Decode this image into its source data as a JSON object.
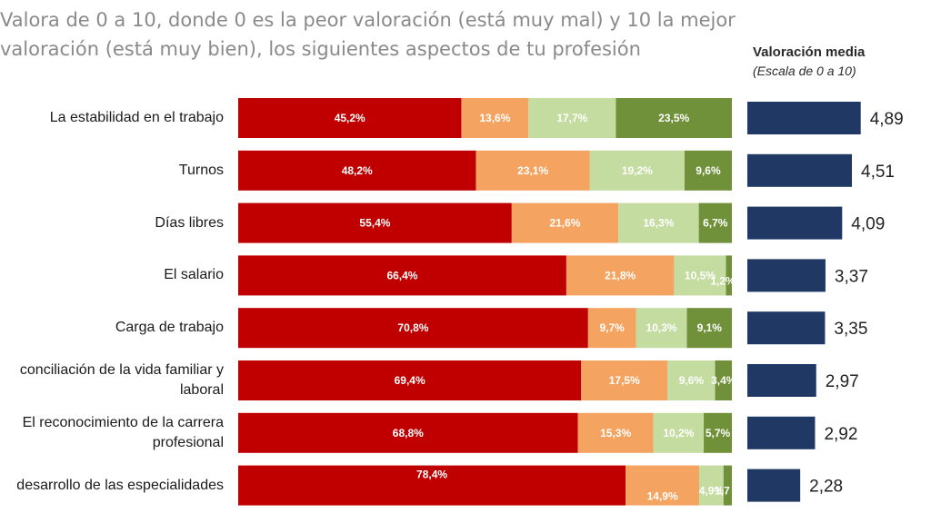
{
  "title_lines": [
    "Valora de 0 a 10, donde 0 es la peor valoración (está muy mal) y 10 la mejor",
    "valoración (está muy bien), los siguientes aspectos de tu profesión"
  ],
  "avg_header": {
    "title": "Valoración media",
    "subtitle": "(Escala de 0 a 10)"
  },
  "colors": {
    "seg1": "#c00000",
    "seg2": "#f4a460",
    "seg3": "#c5dca0",
    "seg4": "#70913a",
    "avg_bar": "#1f3864"
  },
  "chart_data": {
    "type": "bar",
    "stacked": true,
    "orientation": "horizontal",
    "categories": [
      "La estabilidad en el trabajo",
      "Turnos",
      "Días libres",
      "El salario",
      "Carga de trabajo",
      "conciliación de la vida familiar y laboral",
      "El reconocimiento de la carrera profesional",
      "desarrollo de las especialidades"
    ],
    "category_label_lines": [
      [
        "La estabilidad en el trabajo"
      ],
      [
        "Turnos"
      ],
      [
        "Días libres"
      ],
      [
        "El salario"
      ],
      [
        "Carga de trabajo"
      ],
      [
        "conciliación de la vida familiar y",
        "laboral"
      ],
      [
        "El reconocimiento de la carrera",
        "profesional"
      ],
      [
        "desarrollo de las especialidades"
      ]
    ],
    "series": [
      {
        "values": [
          45.2,
          48.2,
          55.4,
          66.4,
          70.8,
          69.4,
          68.8,
          78.4
        ],
        "labels": [
          "45,2%",
          "48,2%",
          "55,4%",
          "66,4%",
          "70,8%",
          "69,4%",
          "68,8%",
          "78,4%"
        ]
      },
      {
        "values": [
          13.6,
          23.1,
          21.6,
          21.8,
          9.7,
          17.5,
          15.3,
          14.9
        ],
        "labels": [
          "13,6%",
          "23,1%",
          "21,6%",
          "21,8%",
          "9,7%",
          "17,5%",
          "15,3%",
          "14,9%"
        ]
      },
      {
        "values": [
          17.7,
          19.2,
          16.3,
          10.5,
          10.3,
          9.6,
          10.2,
          4.9
        ],
        "labels": [
          "17,7%",
          "19,2%",
          "16,3%",
          "10,5%",
          "10,3%",
          "9,6%",
          "10,2%",
          "4,9%"
        ]
      },
      {
        "values": [
          23.5,
          9.6,
          6.7,
          1.2,
          9.1,
          3.4,
          5.7,
          1.7
        ],
        "labels": [
          "23,5%",
          "9,6%",
          "6,7%",
          "1,2%",
          "9,1%",
          "3,4%",
          "5,7%",
          "1,7"
        ]
      }
    ],
    "averages": {
      "values": [
        4.89,
        4.51,
        4.09,
        3.37,
        3.35,
        2.97,
        2.92,
        2.28
      ],
      "labels": [
        "4,89",
        "4,51",
        "4,09",
        "3,37",
        "3,35",
        "2,97",
        "2,92",
        "2,28"
      ]
    }
  }
}
